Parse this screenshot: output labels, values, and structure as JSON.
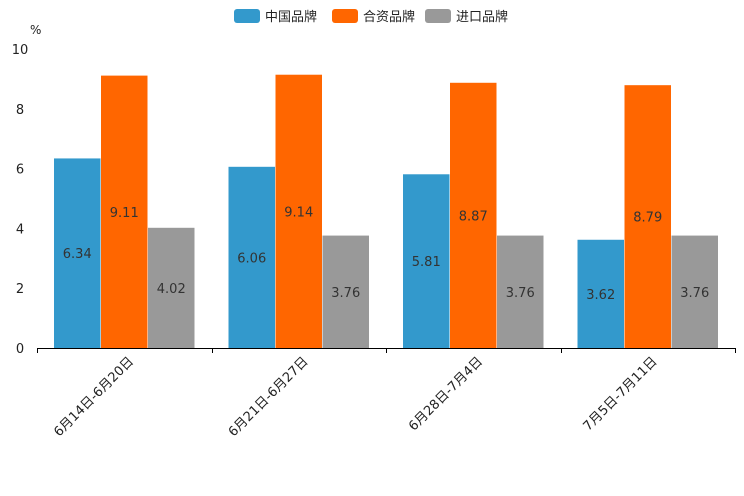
{
  "chart_data": {
    "type": "bar",
    "title": "",
    "xlabel": "",
    "ylabel": "%",
    "ylim": [
      0,
      10
    ],
    "yticks": [
      0,
      2,
      4,
      6,
      8,
      10
    ],
    "grid": false,
    "legend_position": "top-center",
    "categories": [
      "6月14日-6月20日",
      "6月21日-6月27日",
      "6月28日-7月4日",
      "7月5日-7月11日"
    ],
    "series": [
      {
        "name": "中国品牌",
        "color": "#3399cc",
        "values": [
          6.34,
          6.06,
          5.81,
          3.62
        ]
      },
      {
        "name": "合资品牌",
        "color": "#ff6600",
        "values": [
          9.11,
          9.14,
          8.87,
          8.79
        ]
      },
      {
        "name": "进口品牌",
        "color": "#999999",
        "values": [
          4.02,
          3.76,
          3.76,
          3.76
        ]
      }
    ]
  }
}
